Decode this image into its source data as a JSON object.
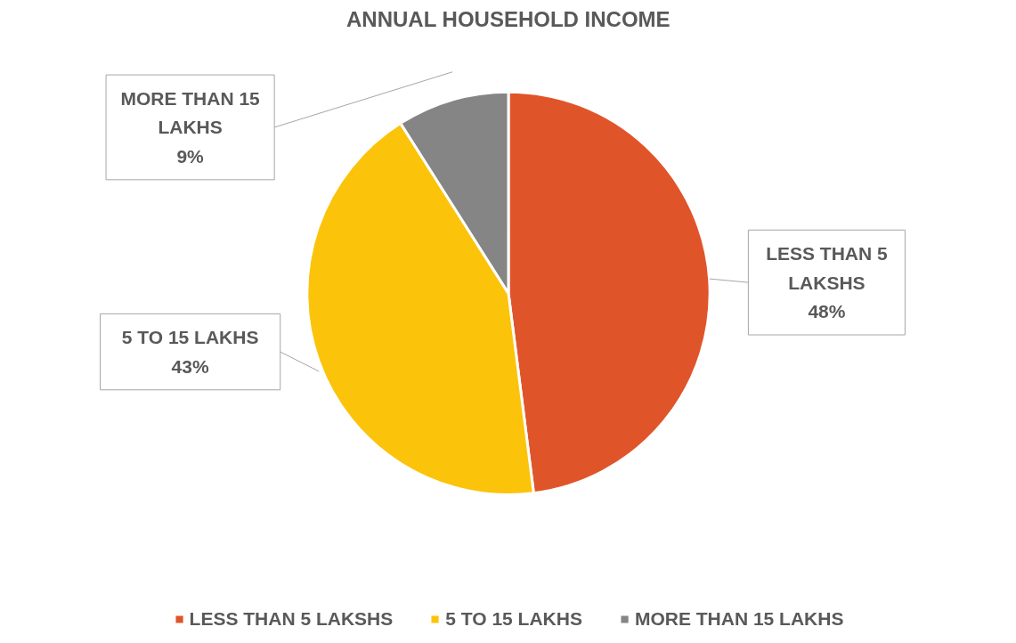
{
  "chart_data": {
    "type": "pie",
    "title": "ANNUAL HOUSEHOLD INCOME",
    "categories": [
      "LESS THAN 5 LAKSHS",
      "5 TO 15 LAKHS",
      "MORE THAN 15 LAKHS"
    ],
    "values": [
      48,
      43,
      9
    ],
    "value_labels": [
      "48%",
      "43%",
      "9%"
    ],
    "colors": [
      "#e0542a",
      "#fcc30b",
      "#858585"
    ],
    "legend": "bottom"
  }
}
